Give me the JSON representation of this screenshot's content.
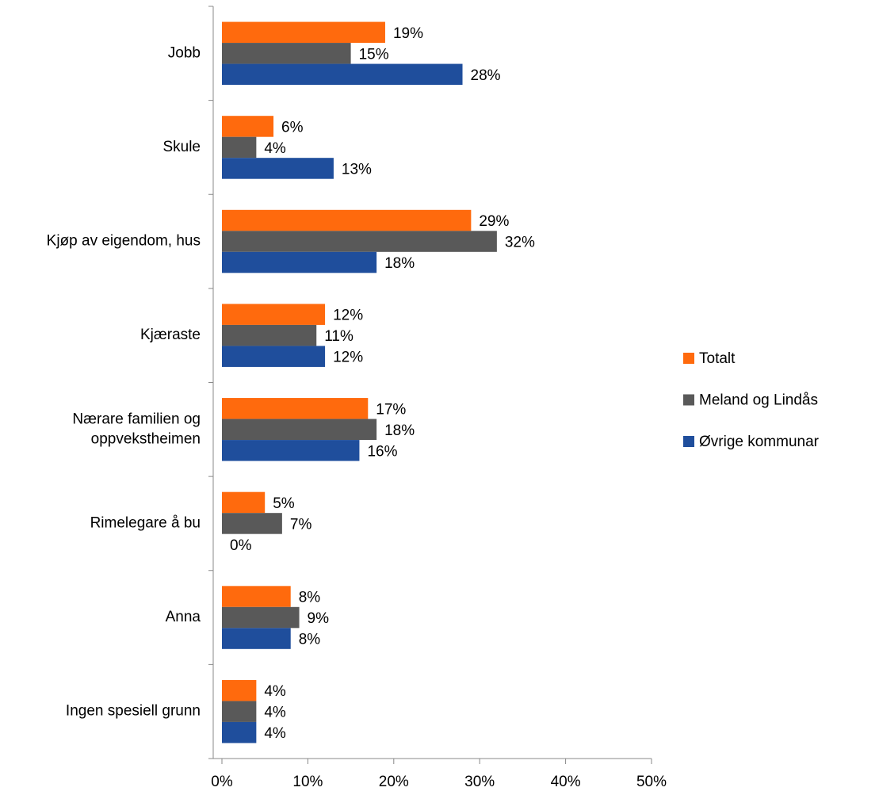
{
  "chart_data": {
    "type": "hbar",
    "categories": [
      "Jobb",
      "Skule",
      "Kjøp av eigendom, hus",
      "Kjæraste",
      "Nærare familien og oppvekstheimen",
      "Rimelegare å bu",
      "Anna",
      "Ingen spesiell grunn"
    ],
    "series": [
      {
        "name": "Totalt",
        "color": "#ff6a0d",
        "values": [
          19,
          6,
          29,
          12,
          17,
          5,
          8,
          4
        ],
        "value_labels": [
          "19%",
          "6%",
          "29%",
          "12%",
          "17%",
          "5%",
          "8%",
          "4%"
        ]
      },
      {
        "name": "Meland og Lindås",
        "color": "#595959",
        "values": [
          15,
          4,
          32,
          11,
          18,
          7,
          9,
          4
        ],
        "value_labels": [
          "15%",
          "4%",
          "32%",
          "11%",
          "18%",
          "7%",
          "9%",
          "4%"
        ]
      },
      {
        "name": "Øvrige kommunar",
        "color": "#1f4e9c",
        "values": [
          28,
          13,
          18,
          12,
          16,
          0,
          8,
          4
        ],
        "value_labels": [
          "28%",
          "13%",
          "18%",
          "12%",
          "16%",
          "0%",
          "8%",
          "4%"
        ]
      }
    ],
    "xlim": [
      0,
      50
    ],
    "xticks": [
      {
        "value": 0,
        "label": "0%"
      },
      {
        "value": 10,
        "label": "10%"
      },
      {
        "value": 20,
        "label": "20%"
      },
      {
        "value": 30,
        "label": "30%"
      },
      {
        "value": 40,
        "label": "40%"
      },
      {
        "value": 50,
        "label": "50%"
      }
    ],
    "legend": "right"
  }
}
